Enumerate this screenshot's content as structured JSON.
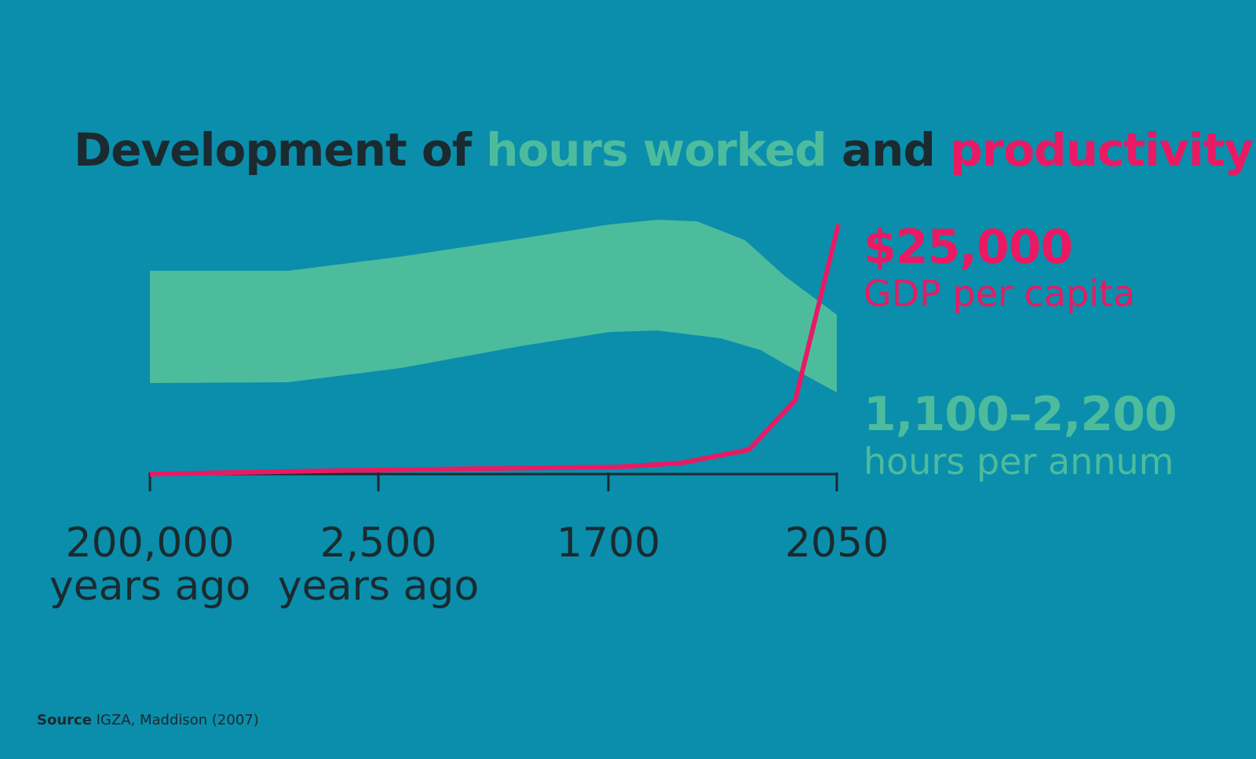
{
  "title": {
    "part1": "Development of ",
    "hours": "hours worked",
    "part2": " and ",
    "productivity": "productivity"
  },
  "annotations": {
    "gdp_value": "$25,000",
    "gdp_label": "GDP per capita",
    "hours_value": "1,100–2,200",
    "hours_label": "hours per annum"
  },
  "x_axis": {
    "labels": [
      [
        "200,000",
        "years ago"
      ],
      [
        "2,500",
        "years ago"
      ],
      [
        "1700"
      ],
      [
        "2050"
      ]
    ]
  },
  "source": {
    "label": "Source",
    "text": " IGZA, Maddison (2007)"
  }
}
